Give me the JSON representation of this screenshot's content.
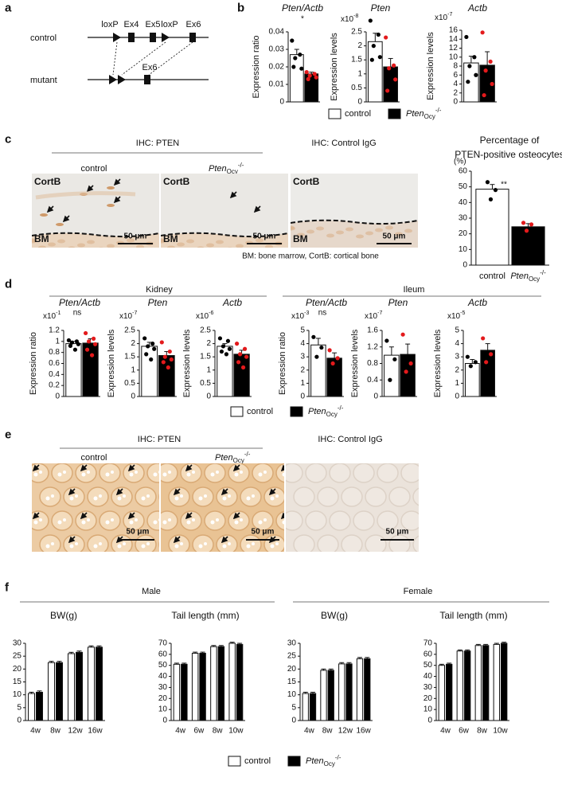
{
  "panel_labels": [
    "a",
    "b",
    "c",
    "d",
    "e",
    "f"
  ],
  "diagram": {
    "rows": [
      "control",
      "mutant"
    ],
    "control_labels": [
      "loxP",
      "Ex4",
      "Ex5",
      "loxP",
      "Ex6"
    ],
    "mutant_labels": [
      "Ex6"
    ]
  },
  "ihc_c": {
    "headers": [
      "IHC: PTEN",
      "IHC: Control IgG"
    ],
    "captions": [
      {
        "text": "control"
      },
      {
        "text": "Pten",
        "sub": "Ocy",
        "sup": "-/-"
      }
    ],
    "images": [
      {
        "labels": [
          "CortB",
          "BM"
        ],
        "scale": "50 μm"
      },
      {
        "labels": [
          "CortB",
          "BM"
        ],
        "scale": "50 μm"
      },
      {
        "labels": [
          "CortB",
          "BM"
        ],
        "scale": "50 μm"
      }
    ],
    "footnote": "BM: bone marrow, CortB: cortical bone"
  },
  "ihc_e": {
    "headers": [
      "IHC: PTEN",
      "IHC: Control IgG"
    ],
    "captions": [
      {
        "text": "control"
      },
      {
        "text": "Pten",
        "sub": "Ocy",
        "sup": "-/-"
      }
    ],
    "images": [
      {
        "scale": "50 μm"
      },
      {
        "scale": "50 μm"
      },
      {
        "scale": "50 μm"
      }
    ]
  },
  "groups_d": [
    "Kidney",
    "Ileum"
  ],
  "groups_f": [
    "Male",
    "Female"
  ],
  "chart_data": [
    {
      "type": "bar",
      "title": "Pten/Actb",
      "ylabel": "Expression ratio",
      "annotation": "*",
      "ylim": [
        0,
        0.04
      ],
      "yticks": [
        0,
        0.01,
        0.02,
        0.03,
        0.04
      ],
      "series": [
        {
          "name": "control",
          "color": "#ffffff",
          "point_color": "#000000",
          "values": [
            0.027
          ],
          "errors": [
            0.003
          ],
          "points": [
            0.035,
            0.027,
            0.025,
            0.019,
            0.02
          ]
        },
        {
          "name": "Pten",
          "name_sub": "Ocy",
          "name_sup": "-/-",
          "color": "#000000",
          "point_color": "#e31a1c",
          "values": [
            0.016
          ],
          "errors": [
            0.001
          ],
          "points": [
            0.017,
            0.016,
            0.015,
            0.014,
            0.013
          ]
        }
      ]
    },
    {
      "type": "bar",
      "title": "Pten",
      "ylabel": "Expression levels",
      "y_multiplier": "x10",
      "y_multiplier_exp": "-8",
      "ylim": [
        0,
        2.5
      ],
      "yticks": [
        0,
        0.5,
        1,
        1.5,
        2,
        2.5
      ],
      "series": [
        {
          "color": "#ffffff",
          "point_color": "#000000",
          "values": [
            2.15
          ],
          "errors": [
            0.3
          ],
          "points": [
            2.9,
            2.4,
            2.0,
            1.6,
            1.5
          ]
        },
        {
          "color": "#000000",
          "point_color": "#e31a1c",
          "values": [
            1.25
          ],
          "errors": [
            0.3
          ],
          "points": [
            2.3,
            1.3,
            1.2,
            0.8,
            0.4
          ]
        }
      ]
    },
    {
      "type": "bar",
      "title": "Actb",
      "ylabel": "Expression levels",
      "y_multiplier": "x10",
      "y_multiplier_exp": "-7",
      "ylim": [
        0,
        16
      ],
      "yticks": [
        0,
        2,
        4,
        6,
        8,
        10,
        12,
        14,
        16
      ],
      "series": [
        {
          "color": "#ffffff",
          "point_color": "#000000",
          "values": [
            8.7
          ],
          "errors": [
            1.5
          ],
          "points": [
            14.5,
            10,
            8,
            6,
            4.5
          ]
        },
        {
          "color": "#000000",
          "point_color": "#e31a1c",
          "values": [
            8.2
          ],
          "errors": [
            3
          ],
          "points": [
            15.5,
            9,
            7,
            4,
            1.5
          ]
        }
      ]
    },
    {
      "type": "bar",
      "title": [
        "Percentage of",
        "PTEN-positive osteocytes"
      ],
      "ylabel": "(%)",
      "annotation": "**",
      "ylim": [
        0,
        60
      ],
      "yticks": [
        0,
        10,
        20,
        30,
        40,
        50,
        60
      ],
      "series": [
        {
          "name": "control",
          "color": "#ffffff",
          "point_color": "#000000",
          "values": [
            48.5
          ],
          "errors": [
            3
          ],
          "points": [
            53,
            48,
            42
          ]
        },
        {
          "name": "Pten",
          "name_sub": "Ocy",
          "name_sup": "-/-",
          "color": "#000000",
          "point_color": "#e31a1c",
          "values": [
            24.5
          ],
          "errors": [
            2
          ],
          "points": [
            27,
            26,
            22
          ]
        }
      ]
    },
    {
      "type": "bar",
      "title": "Pten/Actb",
      "ylabel": "Expression ratio",
      "annotation": "ns",
      "y_multiplier": "x10",
      "y_multiplier_exp": "-1",
      "ylim": [
        0,
        1.2
      ],
      "yticks": [
        0,
        0.2,
        0.4,
        0.6,
        0.8,
        1,
        1.2
      ],
      "series": [
        {
          "name": "control",
          "color": "#ffffff",
          "point_color": "#000000",
          "values": [
            0.96
          ],
          "errors": [
            0.04
          ],
          "points": [
            1.02,
            1.0,
            0.98,
            0.95,
            0.92,
            0.85
          ]
        },
        {
          "name": "Pten",
          "name_sub": "Ocy",
          "name_sup": "-/-",
          "color": "#000000",
          "point_color": "#e31a1c",
          "values": [
            0.97
          ],
          "errors": [
            0.08
          ],
          "points": [
            1.15,
            1.05,
            1.0,
            0.95,
            0.85,
            0.75
          ]
        }
      ]
    },
    {
      "type": "bar",
      "title": "Pten",
      "ylabel": "Expression levels",
      "y_multiplier": "x10",
      "y_multiplier_exp": "-7",
      "ylim": [
        0,
        2.5
      ],
      "yticks": [
        0,
        0.5,
        1,
        1.5,
        2,
        2.5
      ],
      "series": [
        {
          "color": "#ffffff",
          "point_color": "#000000",
          "values": [
            1.9
          ],
          "errors": [
            0.15
          ],
          "points": [
            2.2,
            2.0,
            1.9,
            1.8,
            1.6,
            1.4
          ]
        },
        {
          "color": "#000000",
          "point_color": "#e31a1c",
          "values": [
            1.55
          ],
          "errors": [
            0.15
          ],
          "points": [
            2.05,
            1.7,
            1.5,
            1.4,
            1.3,
            1.1
          ]
        }
      ]
    },
    {
      "type": "bar",
      "title": "Actb",
      "ylabel": "Expression levels",
      "y_multiplier": "x10",
      "y_multiplier_exp": "-6",
      "ylim": [
        0,
        2.5
      ],
      "yticks": [
        0,
        0.5,
        1,
        1.5,
        2,
        2.5
      ],
      "series": [
        {
          "color": "#ffffff",
          "point_color": "#000000",
          "values": [
            1.9
          ],
          "errors": [
            0.1
          ],
          "points": [
            2.2,
            2.1,
            1.9,
            1.8,
            1.7,
            1.6
          ]
        },
        {
          "color": "#000000",
          "point_color": "#e31a1c",
          "values": [
            1.6
          ],
          "errors": [
            0.15
          ],
          "points": [
            2.0,
            1.8,
            1.6,
            1.5,
            1.3,
            1.1
          ]
        }
      ]
    },
    {
      "type": "bar",
      "title": "Pten/Actb",
      "ylabel": "Expression ratio",
      "annotation": "ns",
      "y_multiplier": "x10",
      "y_multiplier_exp": "-3",
      "ylim": [
        0,
        5
      ],
      "yticks": [
        0,
        1,
        2,
        3,
        4,
        5
      ],
      "series": [
        {
          "color": "#ffffff",
          "point_color": "#000000",
          "values": [
            3.9
          ],
          "errors": [
            0.5
          ],
          "points": [
            4.5,
            3.7,
            3.0
          ]
        },
        {
          "color": "#000000",
          "point_color": "#e31a1c",
          "values": [
            2.9
          ],
          "errors": [
            0.4
          ],
          "points": [
            3.5,
            2.9,
            2.5
          ]
        }
      ]
    },
    {
      "type": "bar",
      "title": "Pten",
      "ylabel": "Expression levels",
      "y_multiplier": "x10",
      "y_multiplier_exp": "-7",
      "ylim": [
        0,
        1.6
      ],
      "yticks": [
        0,
        0.4,
        0.8,
        1.2,
        1.6
      ],
      "series": [
        {
          "color": "#ffffff",
          "point_color": "#000000",
          "values": [
            1.0
          ],
          "errors": [
            0.2
          ],
          "points": [
            1.35,
            0.9,
            0.4
          ]
        },
        {
          "color": "#000000",
          "point_color": "#e31a1c",
          "values": [
            1.02
          ],
          "errors": [
            0.25
          ],
          "points": [
            1.5,
            0.8,
            0.6
          ]
        }
      ]
    },
    {
      "type": "bar",
      "title": "Actb",
      "ylabel": "Expression levels",
      "y_multiplier": "x10",
      "y_multiplier_exp": "-5",
      "ylim": [
        0,
        5
      ],
      "yticks": [
        0,
        1,
        2,
        3,
        4,
        5
      ],
      "series": [
        {
          "color": "#ffffff",
          "point_color": "#000000",
          "values": [
            2.5
          ],
          "errors": [
            0.3
          ],
          "points": [
            3.0,
            2.6,
            2.3
          ]
        },
        {
          "color": "#000000",
          "point_color": "#e31a1c",
          "values": [
            3.5
          ],
          "errors": [
            0.5
          ],
          "points": [
            4.4,
            3.2,
            2.6
          ]
        }
      ]
    },
    {
      "type": "bar",
      "title": "BW(g)",
      "categories": [
        "4w",
        "8w",
        "12w",
        "16w"
      ],
      "ylim": [
        0,
        30
      ],
      "yticks": [
        0,
        5,
        10,
        15,
        20,
        25,
        30
      ],
      "series": [
        {
          "name": "control",
          "color": "#ffffff",
          "values": [
            10.5,
            22.5,
            26,
            28.5
          ],
          "errors": [
            0.5,
            0.5,
            0.5,
            0.5
          ]
        },
        {
          "name": "Pten",
          "name_sub": "Ocy",
          "name_sup": "-/-",
          "color": "#000000",
          "values": [
            11,
            22.5,
            26.5,
            28.5
          ],
          "errors": [
            0.5,
            0.5,
            0.5,
            0.5
          ]
        }
      ]
    },
    {
      "type": "bar",
      "title": "Tail length (mm)",
      "categories": [
        "4w",
        "6w",
        "8w",
        "10w"
      ],
      "ylim": [
        0,
        70
      ],
      "yticks": [
        0,
        10,
        20,
        30,
        40,
        50,
        60,
        70
      ],
      "series": [
        {
          "color": "#ffffff",
          "values": [
            51,
            61,
            67,
            70
          ],
          "errors": [
            1,
            1,
            1,
            1
          ]
        },
        {
          "color": "#000000",
          "values": [
            51,
            61,
            67,
            69
          ],
          "errors": [
            1,
            1,
            1,
            1
          ]
        }
      ]
    },
    {
      "type": "bar",
      "title": "BW(g)",
      "categories": [
        "4w",
        "8w",
        "12w",
        "16w"
      ],
      "ylim": [
        0,
        30
      ],
      "yticks": [
        0,
        5,
        10,
        15,
        20,
        25,
        30
      ],
      "series": [
        {
          "color": "#ffffff",
          "values": [
            10.5,
            19.5,
            22,
            24
          ],
          "errors": [
            0.5,
            0.5,
            0.5,
            0.5
          ]
        },
        {
          "color": "#000000",
          "values": [
            10.5,
            19.5,
            22,
            24
          ],
          "errors": [
            0.5,
            0.5,
            0.5,
            0.5
          ]
        }
      ]
    },
    {
      "type": "bar",
      "title": "Tail length (mm)",
      "categories": [
        "4w",
        "6w",
        "8w",
        "10w"
      ],
      "ylim": [
        0,
        70
      ],
      "yticks": [
        0,
        10,
        20,
        30,
        40,
        50,
        60,
        70
      ],
      "series": [
        {
          "color": "#ffffff",
          "values": [
            50,
            63,
            68,
            69
          ],
          "errors": [
            1,
            1,
            1,
            1
          ]
        },
        {
          "color": "#000000",
          "values": [
            51,
            63,
            68,
            70
          ],
          "errors": [
            1,
            1,
            1,
            1
          ]
        }
      ]
    }
  ]
}
